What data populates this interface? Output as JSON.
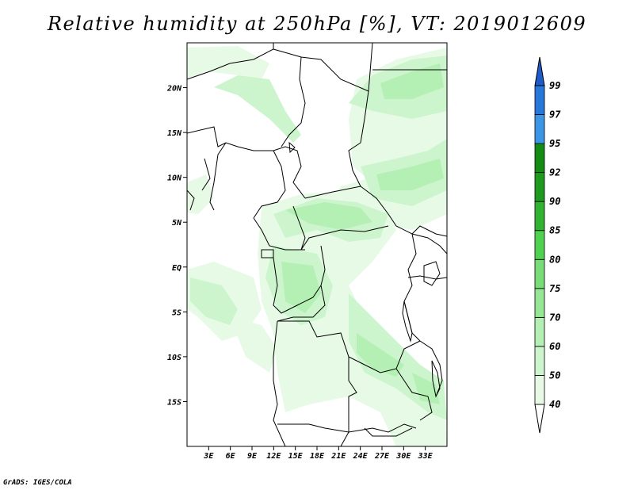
{
  "title": "Relative humidity at 250hPa [%], VT: 2019012609",
  "credit": "GrADS: IGES/COLA",
  "map": {
    "lon_range": [
      0,
      36
    ],
    "lat_range": [
      -20,
      25
    ],
    "lat_ticks": [
      {
        "value": 20,
        "label": "20N"
      },
      {
        "value": 15,
        "label": "15N"
      },
      {
        "value": 10,
        "label": "10N"
      },
      {
        "value": 5,
        "label": "5N"
      },
      {
        "value": 0,
        "label": "EQ"
      },
      {
        "value": -5,
        "label": "5S"
      },
      {
        "value": -10,
        "label": "10S"
      },
      {
        "value": -15,
        "label": "15S"
      }
    ],
    "lon_ticks": [
      {
        "value": 3,
        "label": "3E"
      },
      {
        "value": 6,
        "label": "6E"
      },
      {
        "value": 9,
        "label": "9E"
      },
      {
        "value": 12,
        "label": "12E"
      },
      {
        "value": 15,
        "label": "15E"
      },
      {
        "value": 18,
        "label": "18E"
      },
      {
        "value": 21,
        "label": "21E"
      },
      {
        "value": 24,
        "label": "24E"
      },
      {
        "value": 27,
        "label": "27E"
      },
      {
        "value": 30,
        "label": "30E"
      },
      {
        "value": 33,
        "label": "33E"
      }
    ]
  },
  "colorbar": {
    "levels": [
      {
        "label": "40",
        "color": "#ffffff"
      },
      {
        "label": "50",
        "color": "#e6fae6"
      },
      {
        "label": "60",
        "color": "#cdf5cd"
      },
      {
        "label": "70",
        "color": "#b4f0b4"
      },
      {
        "label": "75",
        "color": "#96e696"
      },
      {
        "label": "80",
        "color": "#78dc78"
      },
      {
        "label": "85",
        "color": "#50d250"
      },
      {
        "label": "90",
        "color": "#32b432"
      },
      {
        "label": "92",
        "color": "#1e9b1e"
      },
      {
        "label": "95",
        "color": "#148c14"
      },
      {
        "label": "97",
        "color": "#3c96e6"
      },
      {
        "label": "99",
        "color": "#2878dc"
      }
    ],
    "top_color": "#1e5ac8"
  },
  "colors": {
    "humidity_50": "#e6fae6",
    "humidity_60": "#cdf5cd",
    "humidity_70": "#b4f0b4",
    "border": "#000000"
  }
}
